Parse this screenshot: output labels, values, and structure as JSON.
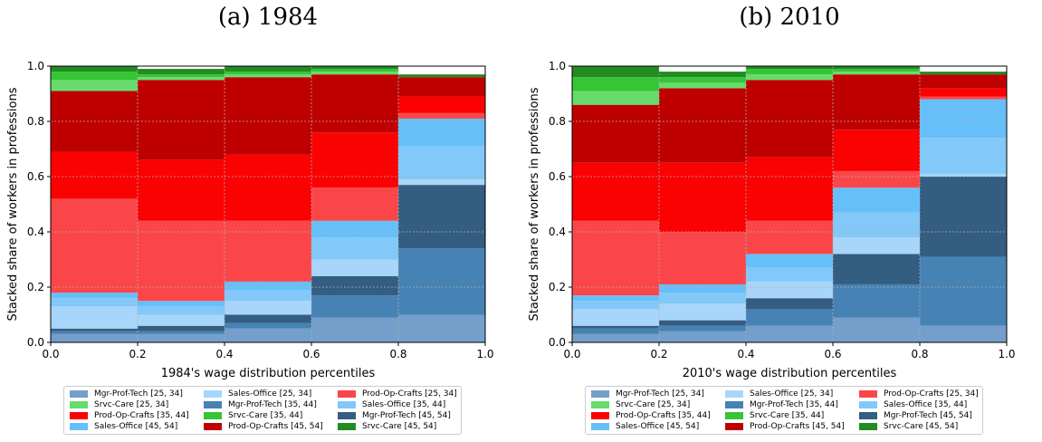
{
  "series_names": [
    "Mgr-Prof-Tech [25, 34]",
    "Sales-Office [25, 34]",
    "Prod-Op-Crafts [25, 34]",
    "Srvc-Care [25, 34]",
    "Mgr-Prof-Tech [35, 44]",
    "Sales-Office [35, 44]",
    "Prod-Op-Crafts [35, 44]",
    "Srvc-Care [35, 44]",
    "Mgr-Prof-Tech [45, 54]",
    "Sales-Office [45, 54]",
    "Prod-Op-Crafts [45, 54]",
    "Srvc-Care [45, 54]"
  ],
  "stack_order": [
    0,
    4,
    8,
    1,
    5,
    9,
    2,
    6,
    10,
    3,
    7,
    11
  ],
  "colors": [
    "#739fca",
    "#a8d6fa",
    "#fb4649",
    "#67db6b",
    "#4682b4",
    "#82c8f9",
    "#fa0102",
    "#35c535",
    "#345d82",
    "#66bff9",
    "#bf0000",
    "#228b22"
  ],
  "chart_data": [
    {
      "type": "bar",
      "panel_title": "(a) 1984",
      "xlabel": "1984's wage distribution percentiles",
      "ylabel": "Stacked share of workers in professions",
      "xlim": [
        0.0,
        1.0
      ],
      "ylim": [
        0.0,
        1.0
      ],
      "x_ticks": [
        "0.0",
        "0.2",
        "0.4",
        "0.6",
        "0.8",
        "1.0"
      ],
      "y_ticks": [
        "0.0",
        "0.2",
        "0.4",
        "0.6",
        "0.8",
        "1.0"
      ],
      "grid": true,
      "legend_position": "below",
      "bins": [
        [
          0.0,
          0.2
        ],
        [
          0.2,
          0.4
        ],
        [
          0.4,
          0.6
        ],
        [
          0.6,
          0.8
        ],
        [
          0.8,
          1.0
        ]
      ],
      "series": [
        {
          "name": "Mgr-Prof-Tech [25, 34]",
          "values": [
            0.03,
            0.03,
            0.05,
            0.09,
            0.1
          ]
        },
        {
          "name": "Sales-Office [25, 34]",
          "values": [
            0.08,
            0.04,
            0.05,
            0.06,
            0.02
          ]
        },
        {
          "name": "Prod-Op-Crafts [25, 34]",
          "values": [
            0.34,
            0.29,
            0.22,
            0.12,
            0.02
          ]
        },
        {
          "name": "Srvc-Care [25, 34]",
          "values": [
            0.04,
            0.01,
            0.01,
            0.01,
            0.0
          ]
        },
        {
          "name": "Mgr-Prof-Tech [35, 44]",
          "values": [
            0.01,
            0.01,
            0.02,
            0.08,
            0.24
          ]
        },
        {
          "name": "Sales-Office [35, 44]",
          "values": [
            0.03,
            0.03,
            0.04,
            0.08,
            0.12
          ]
        },
        {
          "name": "Prod-Op-Crafts [35, 44]",
          "values": [
            0.17,
            0.22,
            0.24,
            0.2,
            0.06
          ]
        },
        {
          "name": "Srvc-Care [35, 44]",
          "values": [
            0.03,
            0.01,
            0.01,
            0.01,
            0.0
          ]
        },
        {
          "name": "Mgr-Prof-Tech [45, 54]",
          "values": [
            0.01,
            0.02,
            0.03,
            0.07,
            0.23
          ]
        },
        {
          "name": "Sales-Office [45, 54]",
          "values": [
            0.02,
            0.02,
            0.03,
            0.06,
            0.1
          ]
        },
        {
          "name": "Prod-Op-Crafts [45, 54]",
          "values": [
            0.22,
            0.29,
            0.28,
            0.21,
            0.07
          ]
        },
        {
          "name": "Srvc-Care [45, 54]",
          "values": [
            0.02,
            0.02,
            0.02,
            0.01,
            0.01
          ]
        }
      ]
    },
    {
      "type": "bar",
      "panel_title": "(b) 2010",
      "xlabel": "2010's wage distribution percentiles",
      "ylabel": "Stacked share of workers in professions",
      "xlim": [
        0.0,
        1.0
      ],
      "ylim": [
        0.0,
        1.0
      ],
      "x_ticks": [
        "0.0",
        "0.2",
        "0.4",
        "0.6",
        "0.8",
        "1.0"
      ],
      "y_ticks": [
        "0.0",
        "0.2",
        "0.4",
        "0.6",
        "0.8",
        "1.0"
      ],
      "grid": true,
      "legend_position": "below",
      "bins": [
        [
          0.0,
          0.2
        ],
        [
          0.2,
          0.4
        ],
        [
          0.4,
          0.6
        ],
        [
          0.6,
          0.8
        ],
        [
          0.8,
          1.0
        ]
      ],
      "series": [
        {
          "name": "Mgr-Prof-Tech [25, 34]",
          "values": [
            0.03,
            0.04,
            0.06,
            0.09,
            0.06
          ]
        },
        {
          "name": "Sales-Office [25, 34]",
          "values": [
            0.06,
            0.06,
            0.06,
            0.06,
            0.01
          ]
        },
        {
          "name": "Prod-Op-Crafts [25, 34]",
          "values": [
            0.27,
            0.19,
            0.12,
            0.06,
            0.01
          ]
        },
        {
          "name": "Srvc-Care [25, 34]",
          "values": [
            0.05,
            0.02,
            0.02,
            0.01,
            0.0
          ]
        },
        {
          "name": "Mgr-Prof-Tech [35, 44]",
          "values": [
            0.02,
            0.02,
            0.06,
            0.12,
            0.25
          ]
        },
        {
          "name": "Sales-Office [35, 44]",
          "values": [
            0.03,
            0.04,
            0.05,
            0.09,
            0.13
          ]
        },
        {
          "name": "Prod-Op-Crafts [35, 44]",
          "values": [
            0.21,
            0.25,
            0.23,
            0.15,
            0.03
          ]
        },
        {
          "name": "Srvc-Care [35, 44]",
          "values": [
            0.05,
            0.02,
            0.02,
            0.01,
            0.0
          ]
        },
        {
          "name": "Mgr-Prof-Tech [45, 54]",
          "values": [
            0.01,
            0.02,
            0.04,
            0.11,
            0.29
          ]
        },
        {
          "name": "Sales-Office [45, 54]",
          "values": [
            0.02,
            0.03,
            0.05,
            0.09,
            0.14
          ]
        },
        {
          "name": "Prod-Op-Crafts [45, 54]",
          "values": [
            0.21,
            0.27,
            0.28,
            0.2,
            0.05
          ]
        },
        {
          "name": "Srvc-Care [45, 54]",
          "values": [
            0.04,
            0.02,
            0.02,
            0.01,
            0.01
          ]
        }
      ]
    }
  ]
}
